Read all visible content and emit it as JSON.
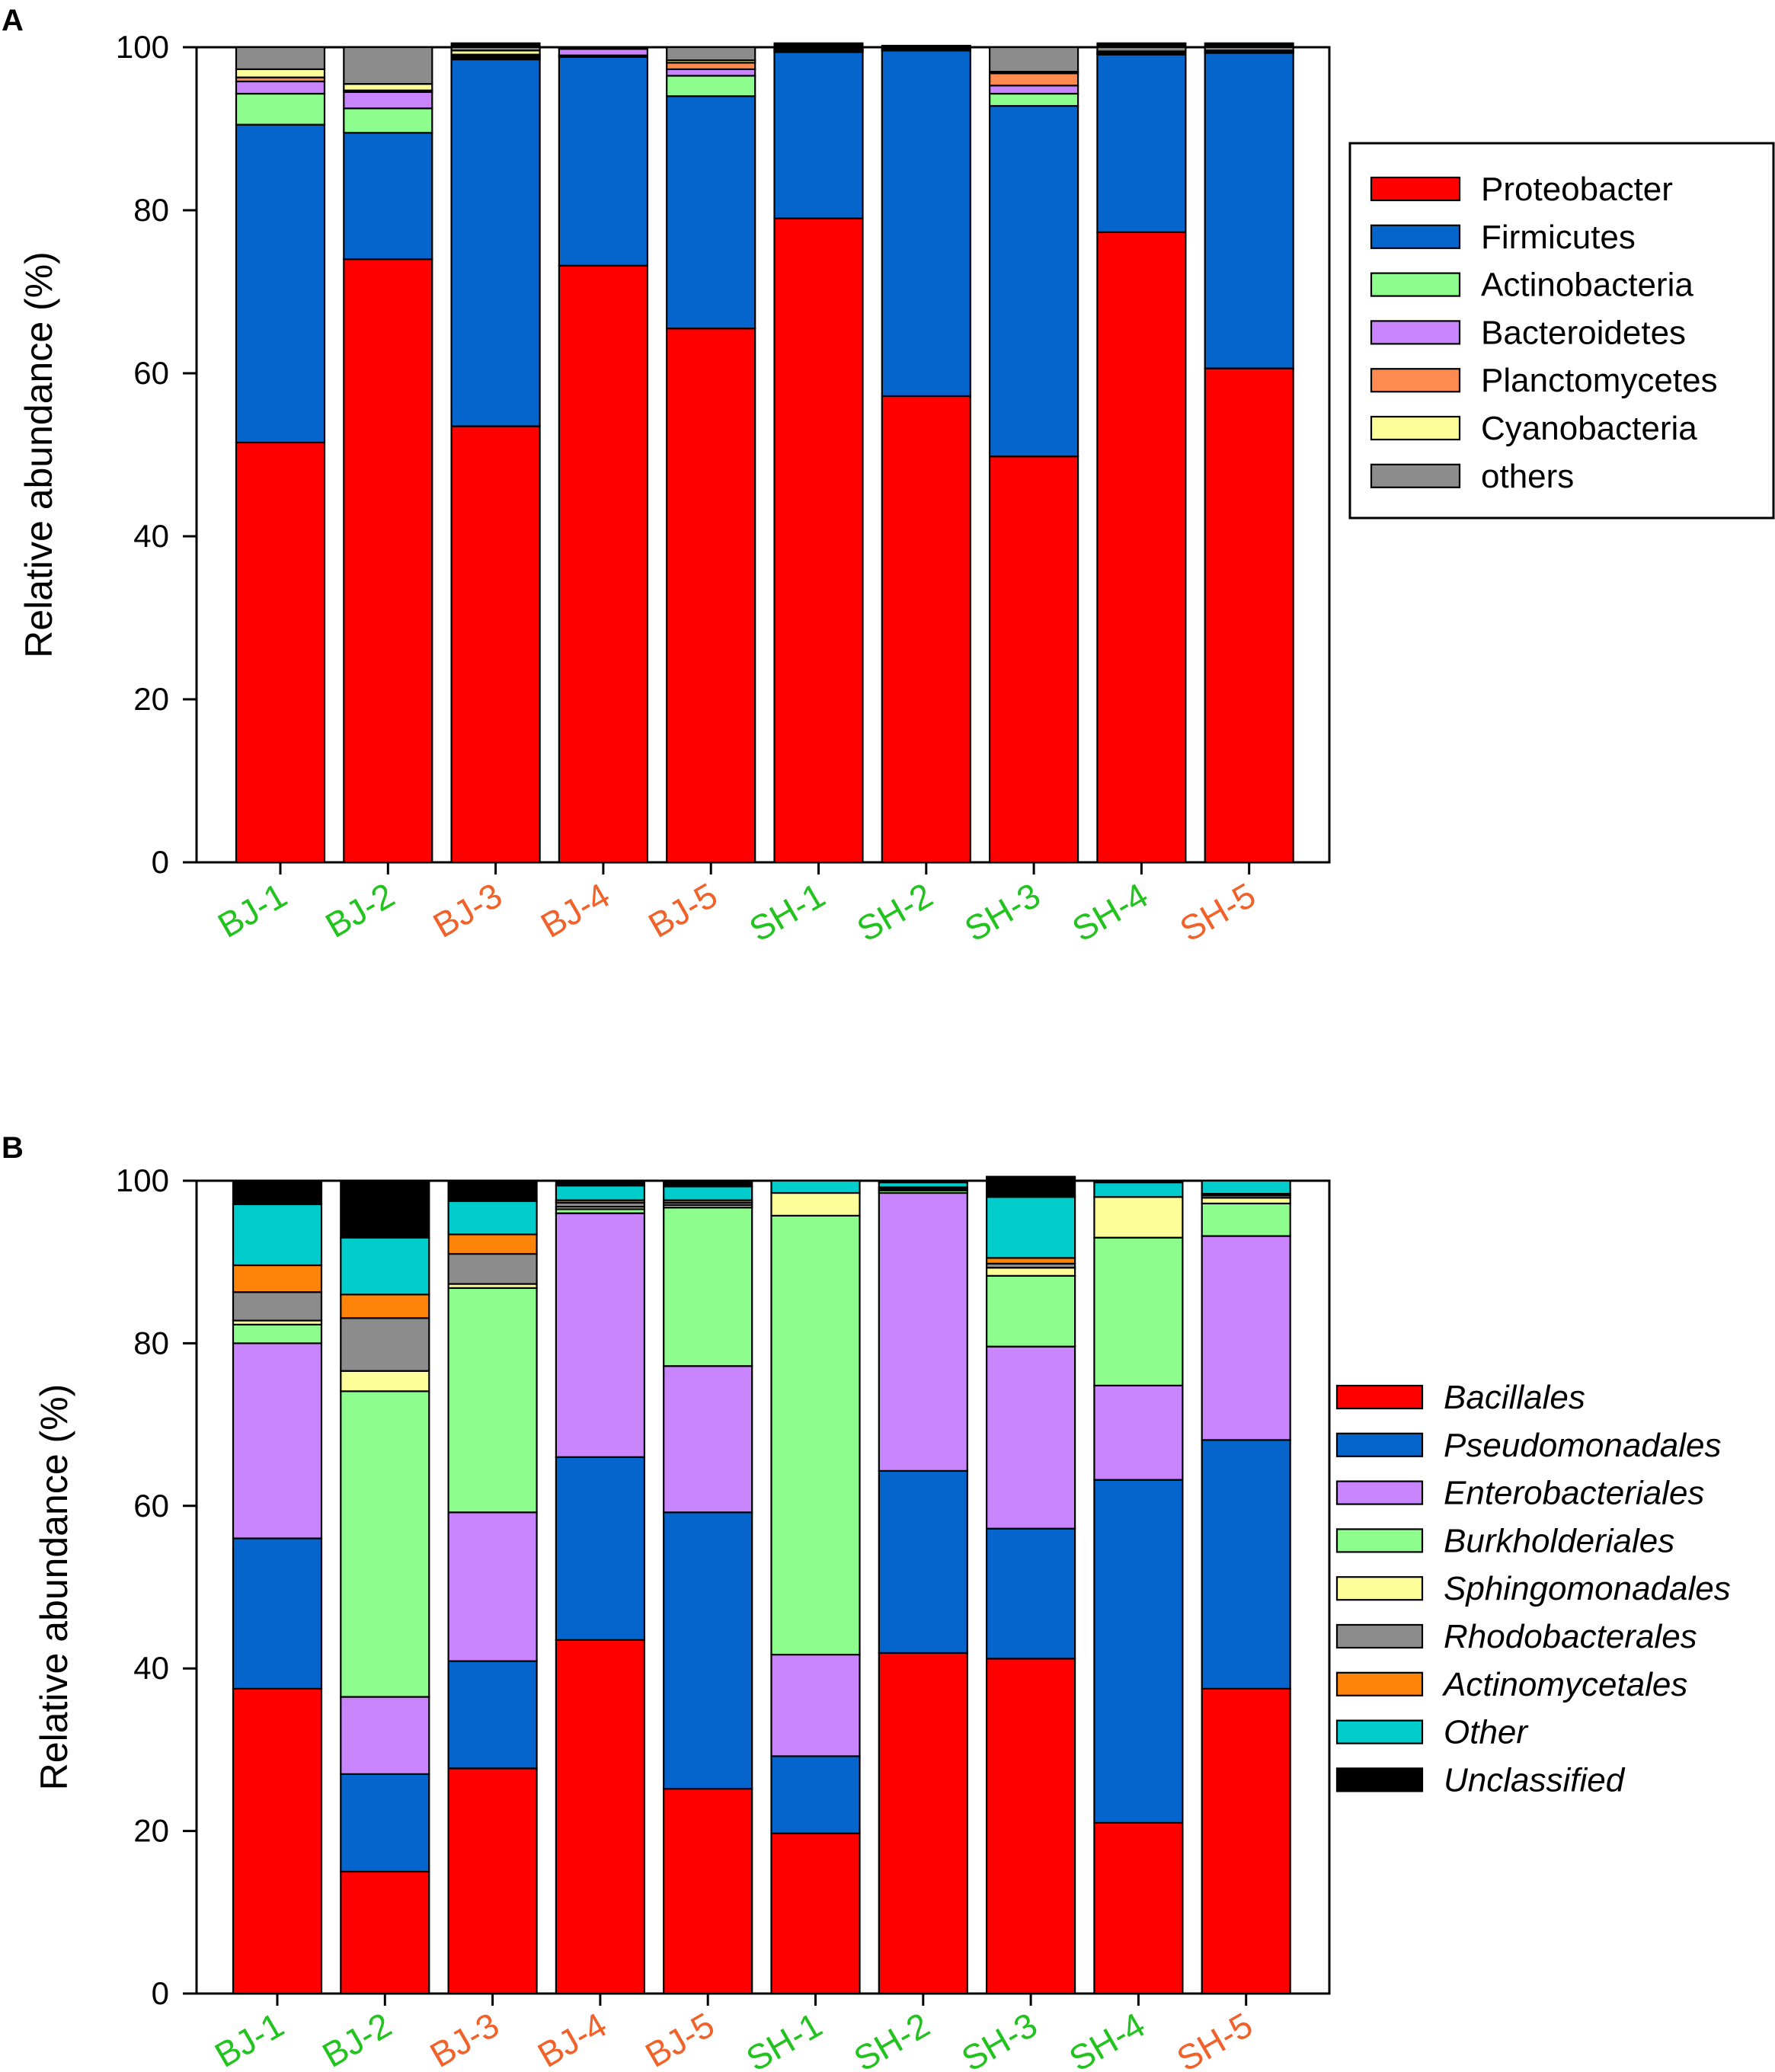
{
  "chart_data": [
    {
      "panel": "A",
      "type": "bar",
      "stacked": true,
      "ylabel": "Relative abundance (%)",
      "ylim": [
        0,
        100
      ],
      "yticks": [
        0,
        20,
        40,
        60,
        80,
        100
      ],
      "categories": [
        "BJ-1",
        "BJ-2",
        "BJ-3",
        "BJ-4",
        "BJ-5",
        "SH-1",
        "SH-2",
        "SH-3",
        "SH-4",
        "SH-5"
      ],
      "category_colors": [
        "#22c21f",
        "#22c21f",
        "#f0622a",
        "#f0622a",
        "#f0622a",
        "#22c21f",
        "#22c21f",
        "#22c21f",
        "#22c21f",
        "#f0622a"
      ],
      "legend_position": "right",
      "legend_italic": false,
      "series": [
        {
          "name": "Proteobacter",
          "color": "#ff0000",
          "values": [
            51.5,
            74.0,
            53.5,
            73.2,
            65.5,
            79.0,
            57.2,
            49.8,
            77.3,
            60.6
          ]
        },
        {
          "name": "Firmicutes",
          "color": "#0565cc",
          "values": [
            39.0,
            15.5,
            45.0,
            25.6,
            28.5,
            20.4,
            42.4,
            43.0,
            21.8,
            38.7
          ]
        },
        {
          "name": "Actinobacteria",
          "color": "#8dfd8d",
          "values": [
            3.8,
            3.0,
            0.2,
            0.2,
            2.5,
            0.1,
            0.1,
            1.5,
            0.1,
            0.1
          ]
        },
        {
          "name": "Bacteroidetes",
          "color": "#c985fc",
          "values": [
            1.5,
            2.0,
            0.2,
            0.8,
            0.8,
            0.1,
            0.1,
            1.0,
            0.1,
            0.1
          ]
        },
        {
          "name": "Planctomycetes",
          "color": "#fd8a4f",
          "values": [
            0.5,
            0.2,
            0.2,
            0.1,
            0.8,
            0.1,
            0.0,
            1.5,
            0.0,
            0.0
          ]
        },
        {
          "name": "Cyanobacteria",
          "color": "#fdfd99",
          "values": [
            1.0,
            0.8,
            0.5,
            0.1,
            0.3,
            0.1,
            0.0,
            0.2,
            0.2,
            0.1
          ]
        },
        {
          "name": "others",
          "color": "#8c8c8c",
          "values": [
            2.7,
            4.5,
            0.4,
            0.0,
            1.6,
            0.2,
            0.2,
            3.0,
            0.5,
            0.4
          ]
        }
      ],
      "black_top_values": [
        0.0,
        0.0,
        0.5,
        0.0,
        0.0,
        0.5,
        0.2,
        0.0,
        0.5,
        0.5
      ]
    },
    {
      "panel": "B",
      "type": "bar",
      "stacked": true,
      "ylabel": "Relative abundance (%)",
      "ylim": [
        0,
        100
      ],
      "yticks": [
        0,
        20,
        40,
        60,
        80,
        100
      ],
      "categories": [
        "BJ-1",
        "BJ-2",
        "BJ-3",
        "BJ-4",
        "BJ-5",
        "SH-1",
        "SH-2",
        "SH-3",
        "SH-4",
        "SH-5"
      ],
      "category_colors": [
        "#22c21f",
        "#22c21f",
        "#f0622a",
        "#f0622a",
        "#f0622a",
        "#22c21f",
        "#22c21f",
        "#22c21f",
        "#22c21f",
        "#f0622a"
      ],
      "legend_position": "right",
      "legend_italic": true,
      "series": [
        {
          "name": "Bacillales",
          "color": "#ff0000",
          "values": [
            37.5,
            15.0,
            27.7,
            43.5,
            25.2,
            19.7,
            41.9,
            41.2,
            21.0,
            37.5
          ]
        },
        {
          "name": "Pseudomonadales",
          "color": "#0565cc",
          "values": [
            18.5,
            12.0,
            13.2,
            22.5,
            34.0,
            9.5,
            22.4,
            16.0,
            42.2,
            30.6
          ]
        },
        {
          "name": "Enterobacteriales",
          "color": "#c985fc",
          "values": [
            24.0,
            9.5,
            18.3,
            30.0,
            18.0,
            12.5,
            34.2,
            22.4,
            11.6,
            25.1
          ]
        },
        {
          "name": "Burkholderiales",
          "color": "#8dfd8d",
          "values": [
            2.3,
            37.6,
            27.6,
            0.5,
            19.5,
            54.0,
            0.3,
            8.7,
            18.2,
            4.0
          ]
        },
        {
          "name": "Sphingomonadales",
          "color": "#fdfd99",
          "values": [
            0.5,
            2.5,
            0.5,
            0.3,
            0.3,
            2.8,
            0.2,
            1.0,
            5.0,
            0.7
          ]
        },
        {
          "name": "Rhodobacterales",
          "color": "#8c8c8c",
          "values": [
            3.5,
            6.5,
            3.7,
            0.5,
            0.3,
            0.0,
            0.2,
            0.5,
            0.0,
            0.3
          ]
        },
        {
          "name": "Actinomycetales",
          "color": "#fd8409",
          "values": [
            3.3,
            2.9,
            2.4,
            0.3,
            0.3,
            0.0,
            0.0,
            0.7,
            0.0,
            0.2
          ]
        },
        {
          "name": "Other",
          "color": "#00cccc",
          "values": [
            7.5,
            7.0,
            4.1,
            1.8,
            1.7,
            1.5,
            0.6,
            7.5,
            1.8,
            1.6
          ]
        },
        {
          "name": "Unclassified",
          "color": "#000000",
          "values": [
            2.9,
            7.0,
            2.5,
            0.6,
            0.7,
            0.0,
            0.2,
            2.5,
            0.2,
            0.0
          ]
        }
      ]
    }
  ]
}
